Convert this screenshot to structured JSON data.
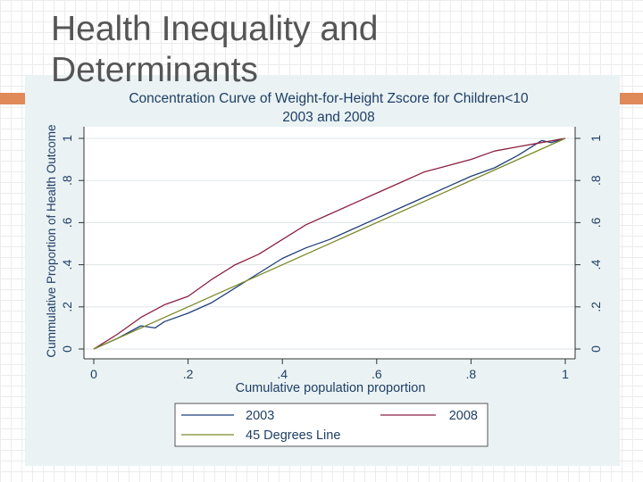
{
  "slide": {
    "title_line1": "Health Inequality and",
    "title_line2": "Determinants",
    "accent_color": "#e08a5a"
  },
  "chart_data": {
    "type": "line",
    "title": "Concentration Curve of Weight-for-Height Zscore for Children<10",
    "subtitle": "2003 and 2008",
    "xlabel": "Cumulative population proportion",
    "ylabel": "Cummulative Proportion of Health Outcome",
    "xlim": [
      0,
      1
    ],
    "ylim": [
      0,
      1
    ],
    "x_ticks": [
      0,
      0.2,
      0.4,
      0.6,
      0.8,
      1
    ],
    "x_tick_labels": [
      "0",
      ".2",
      ".4",
      ".6",
      ".8",
      "1"
    ],
    "y_ticks": [
      0,
      0.2,
      0.4,
      0.6,
      0.8,
      1
    ],
    "y_tick_labels": [
      "0",
      ".2",
      ".4",
      ".6",
      ".8",
      "1"
    ],
    "grid": true,
    "legend_position": "bottom",
    "series": [
      {
        "name": "2003",
        "color": "#1f3f7a",
        "x": [
          0,
          0.05,
          0.1,
          0.13,
          0.15,
          0.2,
          0.25,
          0.3,
          0.35,
          0.4,
          0.45,
          0.5,
          0.55,
          0.6,
          0.65,
          0.7,
          0.75,
          0.8,
          0.85,
          0.9,
          0.95,
          0.97,
          1
        ],
        "y": [
          0,
          0.05,
          0.11,
          0.1,
          0.13,
          0.17,
          0.22,
          0.29,
          0.36,
          0.43,
          0.48,
          0.52,
          0.57,
          0.62,
          0.67,
          0.72,
          0.77,
          0.82,
          0.86,
          0.92,
          0.99,
          0.98,
          1
        ]
      },
      {
        "name": "2008",
        "color": "#8b2040",
        "x": [
          0,
          0.05,
          0.1,
          0.15,
          0.2,
          0.25,
          0.3,
          0.35,
          0.4,
          0.45,
          0.5,
          0.55,
          0.6,
          0.65,
          0.7,
          0.75,
          0.8,
          0.85,
          0.9,
          0.95,
          1
        ],
        "y": [
          0,
          0.07,
          0.15,
          0.21,
          0.25,
          0.33,
          0.4,
          0.45,
          0.52,
          0.59,
          0.64,
          0.69,
          0.74,
          0.79,
          0.84,
          0.87,
          0.9,
          0.94,
          0.96,
          0.98,
          1
        ]
      },
      {
        "name": "45 Degrees Line",
        "color": "#7a8a2a",
        "x": [
          0,
          1
        ],
        "y": [
          0,
          1
        ]
      }
    ]
  }
}
